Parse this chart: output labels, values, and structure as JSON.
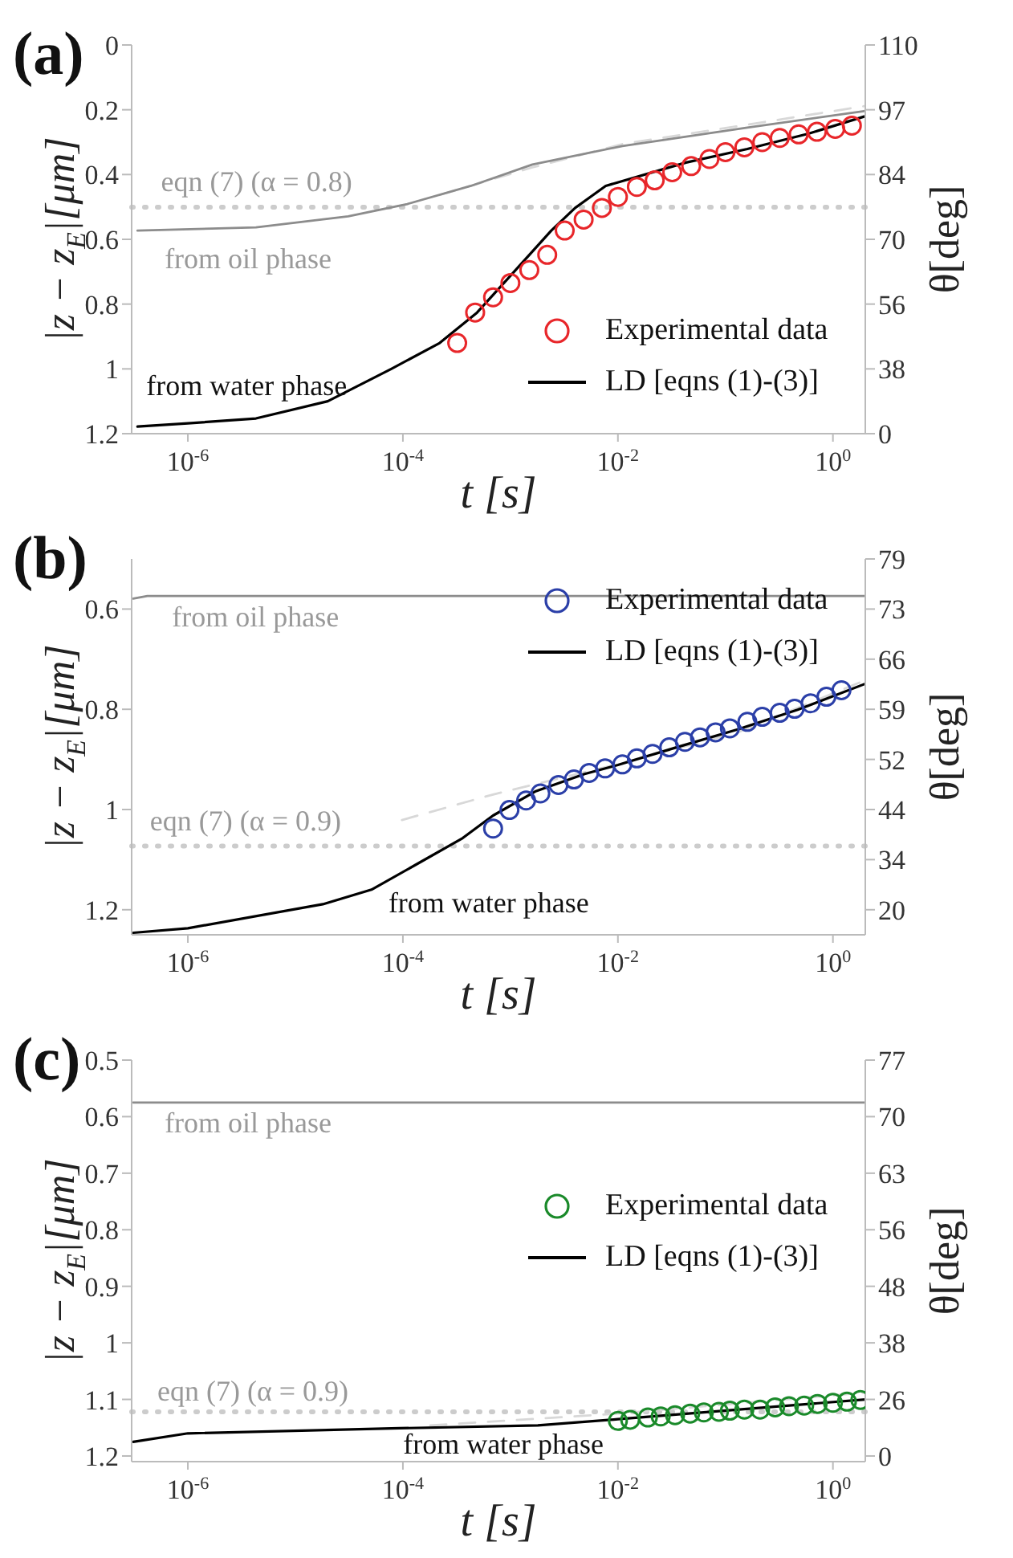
{
  "chart_data": [
    {
      "type": "line",
      "title": "(a)",
      "xlabel": "t [s]",
      "ylabel": "|z − z$_{E}$|[μm]",
      "y2label": "θ[deg]",
      "log": "x",
      "grid": false,
      "legend": "bottom right",
      "xlim": [
        3e-07,
        2
      ],
      "xticks": [
        {
          "value": 1e-06,
          "label": "10$^{-6}$"
        },
        {
          "value": 0.0001,
          "label": "10$^{-4}$"
        },
        {
          "value": 0.01,
          "label": "10$^{-2}$"
        },
        {
          "value": 1,
          "label": "10$^{0}$"
        }
      ],
      "ylim": [
        1.2,
        0
      ],
      "yticks": [
        0,
        0.2,
        0.4,
        0.6,
        0.8,
        1,
        1.2
      ],
      "y2_categories": [
        "110",
        "97",
        "84",
        "70",
        "56",
        "38",
        "0"
      ],
      "ref_lines": [
        {
          "axis": "y",
          "value": 0.501,
          "color": "#cccccc",
          "line_style": "dotted"
        }
      ],
      "annotations": [
        "eqn (7) (α = 0.8)",
        "from oil phase",
        "from water phase"
      ],
      "series": [
        {
          "type": "line",
          "color": "#d8d8d8",
          "line_style": "dashed",
          "x": [
            0.00022,
            0.0016,
            0.011,
            0.16,
            1.95
          ],
          "values": [
            0.463,
            0.378,
            0.306,
            0.246,
            0.189
          ]
        },
        {
          "type": "line",
          "color": "#8c8c8c",
          "x": [
            3.4e-07,
            4.3e-06,
            3.1e-05,
            0.00011,
            0.00043,
            0.0016,
            0.011,
            0.16,
            1.95
          ],
          "values": [
            0.573,
            0.563,
            0.529,
            0.491,
            0.435,
            0.369,
            0.312,
            0.255,
            0.204
          ]
        },
        {
          "type": "line",
          "name": "LD [eqns (1)-(3)]",
          "color": "#000000",
          "x": [
            3.4e-07,
            1e-06,
            4.3e-06,
            2e-05,
            7.8e-05,
            0.00022,
            0.00049,
            0.00087,
            0.0015,
            0.0024,
            0.004,
            0.0077,
            0.043,
            0.16,
            0.59,
            1.95
          ],
          "values": [
            1.178,
            1.168,
            1.153,
            1.1,
            1,
            0.92,
            0.826,
            0.735,
            0.648,
            0.573,
            0.503,
            0.435,
            0.363,
            0.321,
            0.274,
            0.221
          ]
        },
        {
          "type": "scatter",
          "name": "Experimental data",
          "color": "#e8262a",
          "marker": "circle",
          "x": [
            0.00032,
            0.00047,
            0.00069,
            0.001,
            0.0015,
            0.0022,
            0.0032,
            0.0048,
            0.0071,
            0.01,
            0.015,
            0.022,
            0.032,
            0.048,
            0.071,
            0.1,
            0.15,
            0.22,
            0.32,
            0.48,
            0.71,
            1.05,
            1.5
          ],
          "values": [
            0.92,
            0.826,
            0.779,
            0.735,
            0.695,
            0.648,
            0.573,
            0.539,
            0.503,
            0.469,
            0.438,
            0.418,
            0.393,
            0.374,
            0.352,
            0.331,
            0.316,
            0.3,
            0.287,
            0.276,
            0.268,
            0.259,
            0.249
          ]
        }
      ]
    },
    {
      "type": "line",
      "title": "(b)",
      "xlabel": "t [s]",
      "ylabel": "|z − z$_{E}$|[μm]",
      "y2label": "θ[deg]",
      "log": "x",
      "grid": false,
      "legend": "top right",
      "xlim": [
        3e-07,
        2
      ],
      "xticks": [
        {
          "value": 1e-06,
          "label": "10$^{-6}$"
        },
        {
          "value": 0.0001,
          "label": "10$^{-4}$"
        },
        {
          "value": 0.01,
          "label": "10$^{-2}$"
        },
        {
          "value": 1,
          "label": "10$^{0}$"
        }
      ],
      "ylim": [
        1.25,
        0.5
      ],
      "yticks": [
        0.6,
        0.8,
        1,
        1.2
      ],
      "y2_categories": [
        "79",
        "73",
        "66",
        "59",
        "52",
        "44",
        "34",
        "20"
      ],
      "ref_lines": [
        {
          "axis": "y",
          "value": 1.073,
          "color": "#cccccc",
          "line_style": "dotted"
        }
      ],
      "annotations": [
        "from oil phase",
        "eqn (7) (α = 0.9)",
        "from water phase"
      ],
      "series": [
        {
          "type": "line",
          "color": "#d8d8d8",
          "line_style": "dashed",
          "x": [
            9.8e-05,
            0.00069,
            0.0093,
            0.13,
            2
          ],
          "values": [
            1.021,
            0.97,
            0.911,
            0.846,
            0.742
          ]
        },
        {
          "type": "line",
          "color": "#8c8c8c",
          "x": [
            3.1e-07,
            4.2e-07,
            2
          ],
          "values": [
            0.579,
            0.574,
            0.574
          ]
        },
        {
          "type": "line",
          "name": "LD [eqns (1)-(3)]",
          "color": "#000000",
          "x": [
            3.1e-07,
            1e-06,
            1.8e-05,
            5.1e-05,
            0.00014,
            0.00036,
            0.00069,
            0.0017,
            0.0049,
            0.01,
            0.035,
            0.13,
            0.47,
            2
          ],
          "values": [
            1.246,
            1.237,
            1.189,
            1.16,
            1.107,
            1.057,
            1.012,
            0.964,
            0.929,
            0.911,
            0.876,
            0.84,
            0.801,
            0.749
          ]
        },
        {
          "type": "scatter",
          "name": "Experimental data",
          "color": "#2b3fa8",
          "marker": "circle",
          "x": [
            0.00069,
            0.00098,
            0.0014,
            0.0019,
            0.0028,
            0.0039,
            0.0054,
            0.0076,
            0.011,
            0.015,
            0.021,
            0.03,
            0.042,
            0.058,
            0.081,
            0.11,
            0.16,
            0.22,
            0.32,
            0.44,
            0.62,
            0.87,
            1.2
          ],
          "values": [
            1.038,
            1.001,
            0.982,
            0.968,
            0.951,
            0.94,
            0.927,
            0.918,
            0.91,
            0.898,
            0.889,
            0.876,
            0.865,
            0.856,
            0.846,
            0.838,
            0.825,
            0.815,
            0.807,
            0.799,
            0.788,
            0.775,
            0.762
          ]
        }
      ]
    },
    {
      "type": "line",
      "title": "(c)",
      "xlabel": "t [s]",
      "ylabel": "|z − z$_{E}$|[μm]",
      "y2label": "θ[deg]",
      "log": "x",
      "grid": false,
      "legend": "right",
      "xlim": [
        3e-07,
        2
      ],
      "xticks": [
        {
          "value": 1e-06,
          "label": "10$^{-6}$"
        },
        {
          "value": 0.0001,
          "label": "10$^{-4}$"
        },
        {
          "value": 0.01,
          "label": "10$^{-2}$"
        },
        {
          "value": 1,
          "label": "10$^{0}$"
        }
      ],
      "ylim": [
        1.21,
        0.5
      ],
      "yticks": [
        0.5,
        0.6,
        0.7,
        0.8,
        0.9,
        1,
        1.1,
        1.2
      ],
      "y2_categories": [
        "77",
        "70",
        "63",
        "56",
        "48",
        "38",
        "26",
        "0"
      ],
      "ref_lines": [
        {
          "axis": "y",
          "value": 1.122,
          "color": "#cccccc",
          "line_style": "dotted"
        }
      ],
      "annotations": [
        "from oil phase",
        "eqn (7) (α = 0.9)",
        "from water phase"
      ],
      "series": [
        {
          "type": "line",
          "color": "#d8d8d8",
          "line_style": "dashed",
          "x": [
            0.00018,
            0.01,
            2
          ],
          "values": [
            1.146,
            1.125,
            1.088
          ]
        },
        {
          "type": "line",
          "color": "#8c8c8c",
          "x": [
            3.1e-07,
            2
          ],
          "values": [
            0.575,
            0.575
          ]
        },
        {
          "type": "line",
          "name": "LD [eqns (1)-(3)]",
          "color": "#000000",
          "x": [
            3.1e-07,
            1e-06,
            9.3e-05,
            0.0018,
            0.01,
            2
          ],
          "values": [
            1.175,
            1.16,
            1.151,
            1.146,
            1.135,
            1.1
          ]
        },
        {
          "type": "scatter",
          "name": "Experimental data",
          "color": "#1a8a2a",
          "marker": "circle",
          "x": [
            0.01,
            0.013,
            0.019,
            0.025,
            0.034,
            0.047,
            0.063,
            0.087,
            0.11,
            0.15,
            0.21,
            0.29,
            0.39,
            0.54,
            0.72,
            1,
            1.35,
            1.8
          ],
          "values": [
            1.138,
            1.136,
            1.132,
            1.13,
            1.128,
            1.125,
            1.123,
            1.122,
            1.12,
            1.118,
            1.118,
            1.114,
            1.112,
            1.111,
            1.108,
            1.106,
            1.104,
            1.101
          ]
        }
      ]
    }
  ]
}
